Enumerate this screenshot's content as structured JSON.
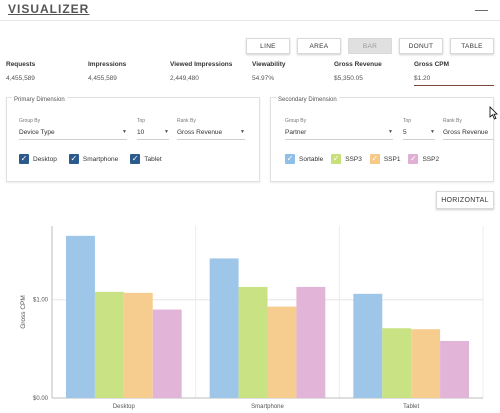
{
  "app": {
    "title": "VISUALIZER",
    "minimize_symbol": "—"
  },
  "toolbar": {
    "buttons": [
      {
        "label": "LINE",
        "active": false
      },
      {
        "label": "AREA",
        "active": false
      },
      {
        "label": "BAR",
        "active": true
      },
      {
        "label": "DONUT",
        "active": false
      },
      {
        "label": "TABLE",
        "active": false
      }
    ]
  },
  "metrics": [
    {
      "label": "Requests",
      "value": "4,455,589"
    },
    {
      "label": "Impressions",
      "value": "4,455,589"
    },
    {
      "label": "Viewed Impressions",
      "value": "2,449,480"
    },
    {
      "label": "Viewability",
      "value": "54.97%"
    },
    {
      "label": "Gross Revenue",
      "value": "$5,350.05"
    },
    {
      "label": "Gross CPM",
      "value": "$1.20",
      "selected": true
    }
  ],
  "primary": {
    "title": "Primary Dimension",
    "group_by": {
      "label": "Group By",
      "value": "Device Type"
    },
    "top": {
      "label": "Top",
      "value": "10"
    },
    "rank_by": {
      "label": "Rank By",
      "value": "Gross Revenue"
    },
    "checkboxes": [
      {
        "label": "Desktop",
        "color": "#2c5a8c",
        "checked": true
      },
      {
        "label": "Smartphone",
        "color": "#2c5a8c",
        "checked": true
      },
      {
        "label": "Tablet",
        "color": "#2c5a8c",
        "checked": true
      }
    ]
  },
  "secondary": {
    "title": "Secondary Dimension",
    "group_by": {
      "label": "Group By",
      "value": "Partner"
    },
    "top": {
      "label": "Top",
      "value": "5"
    },
    "rank_by": {
      "label": "Rank By",
      "value": "Gross Revenue"
    },
    "checkboxes": [
      {
        "label": "Sortable",
        "color": "#8fbfe6",
        "checked": true
      },
      {
        "label": "SSP3",
        "color": "#c8e07a",
        "checked": true
      },
      {
        "label": "SSP1",
        "color": "#f6c987",
        "checked": true
      },
      {
        "label": "SSP2",
        "color": "#e0afd6",
        "checked": true
      }
    ]
  },
  "horizontal_button": {
    "label": "HORIZONTAL"
  },
  "chart_data": {
    "type": "bar",
    "ylabel": "Gross CPM",
    "ylim": [
      0,
      1.75
    ],
    "yticks": [
      {
        "value": 0,
        "label": "$0.00"
      },
      {
        "value": 1,
        "label": "$1.00"
      }
    ],
    "categories": [
      "Desktop",
      "Smartphone",
      "Tablet"
    ],
    "series": [
      {
        "name": "Sortable",
        "color": "#9dc6e8",
        "values": [
          1.65,
          1.42,
          1.06
        ]
      },
      {
        "name": "SSP3",
        "color": "#c9e283",
        "values": [
          1.08,
          1.13,
          0.71
        ]
      },
      {
        "name": "SSP1",
        "color": "#f7cd8f",
        "values": [
          1.07,
          0.93,
          0.7
        ]
      },
      {
        "name": "SSP2",
        "color": "#e2b4d8",
        "values": [
          0.9,
          1.13,
          0.58
        ]
      }
    ],
    "grid": true
  }
}
